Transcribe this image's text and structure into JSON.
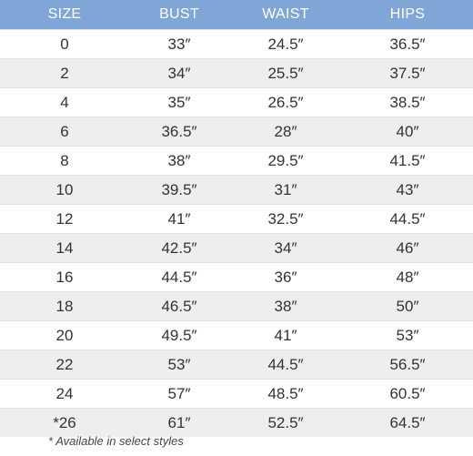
{
  "table": {
    "headers": [
      "SIZE",
      "BUST",
      "WAIST",
      "HIPS"
    ],
    "rows": [
      [
        "0",
        "33″",
        "24.5″",
        "36.5″"
      ],
      [
        "2",
        "34″",
        "25.5″",
        "37.5″"
      ],
      [
        "4",
        "35″",
        "26.5″",
        "38.5″"
      ],
      [
        "6",
        "36.5″",
        "28″",
        "40″"
      ],
      [
        "8",
        "38″",
        "29.5″",
        "41.5″"
      ],
      [
        "10",
        "39.5″",
        "31″",
        "43″"
      ],
      [
        "12",
        "41″",
        "32.5″",
        "44.5″"
      ],
      [
        "14",
        "42.5″",
        "34″",
        "46″"
      ],
      [
        "16",
        "44.5″",
        "36″",
        "48″"
      ],
      [
        "18",
        "46.5″",
        "38″",
        "50″"
      ],
      [
        "20",
        "49.5″",
        "41″",
        "53″"
      ],
      [
        "22",
        "53″",
        "44.5″",
        "56.5″"
      ],
      [
        "24",
        "57″",
        "48.5″",
        "60.5″"
      ],
      [
        "*26",
        "61″",
        "52.5″",
        "64.5″"
      ]
    ]
  },
  "footnote": "* Available in select styles",
  "colors": {
    "header_bg": "#7fa6d6",
    "stripe_bg": "#eeeeee"
  }
}
